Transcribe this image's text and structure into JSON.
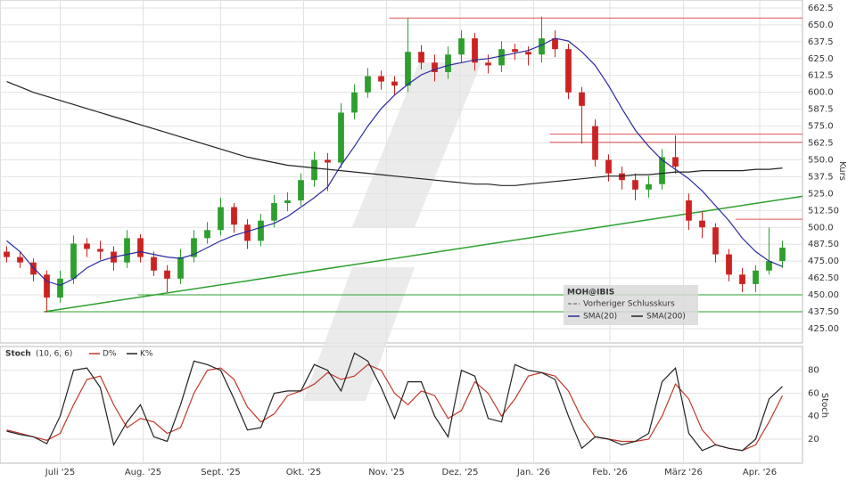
{
  "chart_data": [
    {
      "type": "candlestick",
      "symbol": "MOH@IBIS",
      "ylabel": "Kurs",
      "prev_close_label": "Vorheriger Schlusskurs",
      "up_color": "#2e9e2e",
      "down_color": "#cc2222",
      "x": [
        0,
        1,
        2,
        3,
        4,
        5,
        6,
        7,
        8,
        9,
        10,
        11,
        12,
        13,
        14,
        15,
        16,
        17,
        18,
        19,
        20,
        21,
        22,
        23,
        24,
        25,
        26,
        27,
        28,
        29,
        30,
        31,
        32,
        33,
        34,
        35,
        36,
        37,
        38,
        39,
        40,
        41,
        42,
        43,
        44,
        45,
        46,
        47,
        48,
        49,
        50,
        51,
        52,
        53,
        54,
        55,
        56,
        57,
        58
      ],
      "open": [
        482,
        478,
        474,
        465,
        448,
        462,
        488,
        484,
        482,
        474,
        492,
        478,
        468,
        462,
        478,
        492,
        498,
        515,
        502,
        490,
        505,
        518,
        520,
        535,
        550,
        548,
        585,
        600,
        612,
        608,
        605,
        630,
        622,
        615,
        628,
        640,
        622,
        620,
        632,
        630,
        628,
        640,
        632,
        600,
        575,
        550,
        540,
        535,
        528,
        532,
        552,
        520,
        505,
        500,
        480,
        465,
        458,
        468,
        475
      ],
      "high": [
        486,
        482,
        477,
        468,
        468,
        494,
        492,
        490,
        486,
        498,
        495,
        482,
        472,
        484,
        498,
        504,
        522,
        518,
        506,
        510,
        524,
        526,
        540,
        556,
        555,
        592,
        606,
        618,
        616,
        612,
        655,
        635,
        628,
        634,
        646,
        644,
        628,
        638,
        636,
        634,
        656,
        646,
        636,
        604,
        580,
        554,
        545,
        540,
        538,
        558,
        568,
        525,
        512,
        503,
        484,
        470,
        472,
        500,
        490
      ],
      "low": [
        474,
        470,
        460,
        437,
        444,
        458,
        478,
        476,
        468,
        470,
        474,
        464,
        452,
        458,
        474,
        488,
        494,
        496,
        484,
        486,
        500,
        512,
        516,
        530,
        527,
        544,
        580,
        596,
        602,
        598,
        600,
        617,
        608,
        610,
        622,
        616,
        614,
        615,
        624,
        620,
        622,
        626,
        595,
        562,
        545,
        534,
        528,
        520,
        522,
        528,
        540,
        498,
        492,
        474,
        460,
        452,
        452,
        465,
        470
      ],
      "close": [
        478,
        474,
        465,
        448,
        462,
        488,
        484,
        482,
        474,
        492,
        478,
        468,
        462,
        478,
        492,
        498,
        515,
        502,
        490,
        505,
        518,
        520,
        535,
        550,
        548,
        585,
        600,
        612,
        608,
        605,
        630,
        622,
        615,
        628,
        640,
        622,
        620,
        632,
        630,
        628,
        640,
        632,
        600,
        590,
        550,
        540,
        535,
        528,
        532,
        552,
        545,
        505,
        500,
        480,
        465,
        458,
        468,
        475,
        485
      ],
      "series": [
        {
          "name": "SMA(20)",
          "color": "#2a2aa0",
          "values": [
            490,
            482,
            470,
            460,
            457,
            462,
            470,
            475,
            478,
            480,
            482,
            480,
            478,
            477,
            480,
            485,
            490,
            494,
            497,
            500,
            503,
            508,
            515,
            522,
            530,
            546,
            560,
            575,
            588,
            598,
            606,
            613,
            617,
            620,
            622,
            624,
            625,
            627,
            629,
            631,
            635,
            640,
            638,
            630,
            620,
            605,
            588,
            572,
            560,
            550,
            543,
            536,
            527,
            516,
            505,
            492,
            482,
            475,
            471
          ]
        },
        {
          "name": "SMA(200)",
          "color": "#222222",
          "values": [
            608,
            604,
            600,
            597,
            594,
            591,
            588,
            585,
            582,
            579,
            576,
            573,
            570,
            567,
            564,
            561,
            558,
            555,
            552,
            550,
            548,
            546,
            545,
            544,
            543,
            542,
            541,
            540,
            539,
            538,
            537,
            536,
            535,
            534,
            533,
            532,
            532,
            531,
            531,
            532,
            533,
            534,
            535,
            536,
            537,
            538,
            538,
            539,
            539,
            540,
            541,
            541,
            542,
            542,
            542,
            542,
            543,
            543,
            544
          ]
        }
      ],
      "levels": [
        {
          "y": 655,
          "from": 28.6,
          "color": "#e05555"
        },
        {
          "y": 569,
          "from": 40.6,
          "color": "#e05555"
        },
        {
          "y": 563,
          "from": 40.6,
          "color": "#e05555"
        },
        {
          "y": 506,
          "from": 54.5,
          "color": "#e05555"
        },
        {
          "y": 450,
          "from": 9.8,
          "color": "#2ca02c"
        },
        {
          "y": 437.5,
          "from": 2.8,
          "color": "#2ca02c"
        }
      ],
      "trendline": {
        "x": [
          2.8,
          59.5
        ],
        "y": [
          437.5,
          523
        ],
        "color": "#2ca02c"
      },
      "xlim": [
        -0.5,
        59.5
      ],
      "xticks": [
        {
          "value": 4,
          "label": "Juli '25"
        },
        {
          "value": 10.2,
          "label": "Aug. '25"
        },
        {
          "value": 16,
          "label": "Sept. '25"
        },
        {
          "value": 22.2,
          "label": "Okt. '25"
        },
        {
          "value": 28.4,
          "label": "Nov. '25"
        },
        {
          "value": 33.9,
          "label": "Dez. '25"
        },
        {
          "value": 39.4,
          "label": "Jan. '26"
        },
        {
          "value": 45.1,
          "label": "Feb. '26"
        },
        {
          "value": 50.6,
          "label": "März '26"
        },
        {
          "value": 56.3,
          "label": "Apr. '26"
        }
      ],
      "ylim": [
        414.4,
        668.4
      ],
      "yticks": [
        662.5,
        {
          "value": 650,
          "label": "650.0"
        },
        637.5,
        {
          "value": 625,
          "label": "625.0"
        },
        612.5,
        {
          "value": 600,
          "label": "600.0"
        },
        587.5,
        {
          "value": 575,
          "label": "575.0"
        },
        562.5,
        {
          "value": 550,
          "label": "550.0"
        },
        537.5,
        {
          "value": 525,
          "label": "525.0"
        },
        {
          "value": 512.5,
          "label": "512.50"
        },
        {
          "value": 500,
          "label": "500.0"
        },
        {
          "value": 487.5,
          "label": "487.50"
        },
        {
          "value": 475,
          "label": "475.00"
        },
        {
          "value": 462.5,
          "label": "462.50"
        },
        {
          "value": 450,
          "label": "450.00"
        },
        {
          "value": 437.5,
          "label": "437.50"
        },
        {
          "value": 425,
          "label": "425.00"
        }
      ],
      "grid": true
    },
    {
      "type": "line",
      "title": "Stoch",
      "params": "(10, 6, 6)",
      "ylabel": "Stoch",
      "series": [
        {
          "name": "D%",
          "color": "#c0392b",
          "values": [
            28,
            25,
            22,
            19,
            25,
            50,
            72,
            75,
            50,
            30,
            38,
            35,
            25,
            30,
            60,
            80,
            82,
            72,
            48,
            35,
            42,
            58,
            62,
            68,
            78,
            72,
            75,
            85,
            80,
            60,
            50,
            62,
            58,
            38,
            45,
            70,
            60,
            40,
            55,
            75,
            78,
            75,
            62,
            38,
            22,
            20,
            18,
            18,
            20,
            40,
            68,
            55,
            28,
            15,
            12,
            10,
            15,
            35,
            58
          ]
        },
        {
          "name": "K%",
          "color": "#222222",
          "values": [
            27,
            24,
            22,
            16,
            40,
            80,
            82,
            65,
            15,
            35,
            50,
            22,
            18,
            50,
            88,
            85,
            80,
            55,
            28,
            30,
            60,
            62,
            62,
            85,
            80,
            62,
            95,
            88,
            65,
            38,
            70,
            70,
            40,
            22,
            80,
            75,
            38,
            35,
            85,
            80,
            78,
            72,
            40,
            12,
            22,
            20,
            15,
            18,
            25,
            70,
            82,
            25,
            10,
            15,
            12,
            10,
            20,
            55,
            66
          ]
        }
      ],
      "ylim": [
        -1,
        100
      ],
      "yticks": [
        20,
        40,
        60,
        80
      ],
      "grid": true
    }
  ]
}
